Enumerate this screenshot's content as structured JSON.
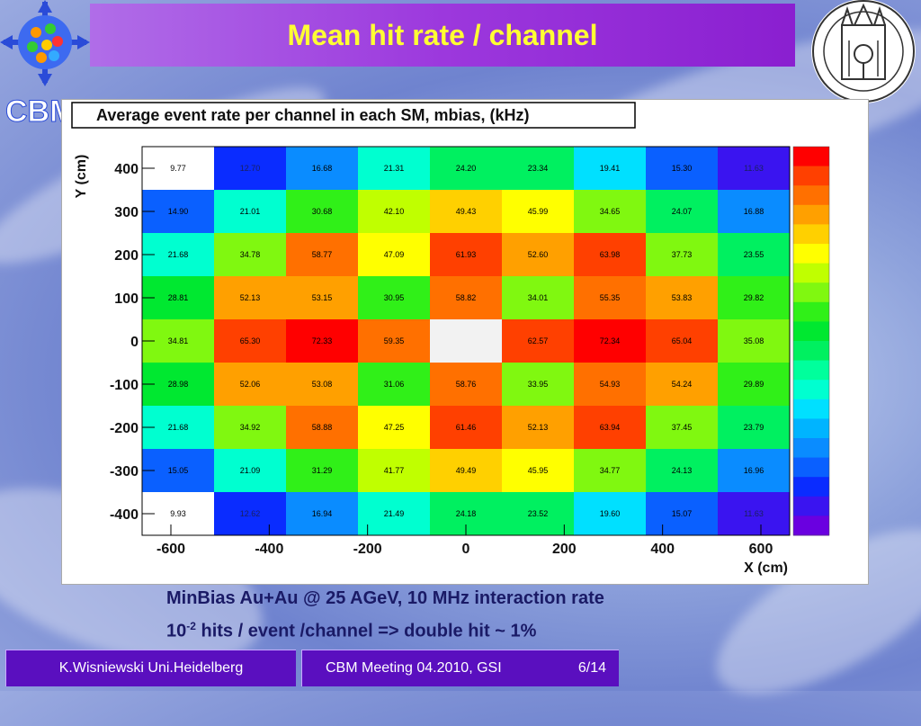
{
  "slide": {
    "title": "Mean hit rate / channel",
    "left_logo_text": "CBM",
    "caption_line1": "MinBias Au+Au @ 25 AGeV, 10 MHz interaction rate",
    "caption_line2_prefix": "10",
    "caption_line2_sup": "-2",
    "caption_line2_suffix": " hits / event /channel => double hit ~ 1%",
    "footer_author": "K.Wisniewski Uni.Heidelberg",
    "footer_meeting": "CBM Meeting 04.2010, GSI",
    "footer_page": "6/14"
  },
  "chart_data": {
    "type": "heatmap",
    "title": "Average event rate per channel in each SM, mbias, (kHz)",
    "xlabel": "X (cm)",
    "ylabel": "Y (cm)",
    "x_ticks": [
      "-600",
      "-400",
      "-200",
      "0",
      "200",
      "400",
      "600"
    ],
    "y_ticks": [
      "400",
      "300",
      "200",
      "100",
      "0",
      "-100",
      "-200",
      "-300",
      "-400"
    ],
    "cells": [
      [
        "9.77",
        "12.70",
        "16.68",
        "21.31",
        "24.20",
        "23.34",
        "19.41",
        "15.30",
        "11.63"
      ],
      [
        "14.90",
        "21.01",
        "30.68",
        "42.10",
        "49.43",
        "45.99",
        "34.65",
        "24.07",
        "16.88"
      ],
      [
        "21.68",
        "34.78",
        "58.77",
        "47.09",
        "61.93",
        "52.60",
        "63.98",
        "37.73",
        "23.55"
      ],
      [
        "28.81",
        "52.13",
        "53.15",
        "30.95",
        "58.82",
        "34.01",
        "55.35",
        "53.83",
        "29.82"
      ],
      [
        "34.81",
        "65.30",
        "72.33",
        "59.35",
        "",
        "62.57",
        "72.34",
        "65.04",
        "35.08"
      ],
      [
        "28.98",
        "52.06",
        "53.08",
        "31.06",
        "58.76",
        "33.95",
        "54.93",
        "54.24",
        "29.89"
      ],
      [
        "21.68",
        "34.92",
        "58.88",
        "47.25",
        "61.46",
        "52.13",
        "63.94",
        "37.45",
        "23.79"
      ],
      [
        "15.05",
        "21.09",
        "31.29",
        "41.77",
        "49.49",
        "45.95",
        "34.77",
        "24.13",
        "16.96"
      ],
      [
        "9.93",
        "12.62",
        "16.94",
        "21.49",
        "24.18",
        "23.52",
        "19.60",
        "15.07",
        "11.63"
      ]
    ],
    "z_range": [
      10,
      75
    ],
    "palette": [
      "#ffffff",
      "#6a00e0",
      "#3a14f0",
      "#0a2cff",
      "#0a60ff",
      "#0a8cff",
      "#00b4ff",
      "#00e0ff",
      "#00ffd0",
      "#00ff9c",
      "#00f060",
      "#00e830",
      "#30f018",
      "#80f810",
      "#c0ff00",
      "#ffff00",
      "#ffd000",
      "#ffa000",
      "#ff7000",
      "#ff4000",
      "#ff0000"
    ],
    "cell_colors": [
      [
        "#ffffff",
        "#0a2cff",
        "#0a8cff",
        "#00ffd0",
        "#00f060",
        "#00f060",
        "#00e0ff",
        "#0a60ff",
        "#3a14f0"
      ],
      [
        "#0a60ff",
        "#00ffd0",
        "#30f018",
        "#c0ff00",
        "#ffd000",
        "#ffff00",
        "#80f810",
        "#00f060",
        "#0a8cff"
      ],
      [
        "#00ffd0",
        "#80f810",
        "#ff7000",
        "#ffff00",
        "#ff4000",
        "#ffa000",
        "#ff4000",
        "#80f810",
        "#00f060"
      ],
      [
        "#00e830",
        "#ffa000",
        "#ffa000",
        "#30f018",
        "#ff7000",
        "#80f810",
        "#ff7000",
        "#ffa000",
        "#30f018"
      ],
      [
        "#80f810",
        "#ff4000",
        "#ff0000",
        "#ff7000",
        "#f2f2f2",
        "#ff4000",
        "#ff0000",
        "#ff4000",
        "#80f810"
      ],
      [
        "#00e830",
        "#ffa000",
        "#ffa000",
        "#30f018",
        "#ff7000",
        "#80f810",
        "#ff7000",
        "#ffa000",
        "#30f018"
      ],
      [
        "#00ffd0",
        "#80f810",
        "#ff7000",
        "#ffff00",
        "#ff4000",
        "#ffa000",
        "#ff4000",
        "#80f810",
        "#00f060"
      ],
      [
        "#0a60ff",
        "#00ffd0",
        "#30f018",
        "#c0ff00",
        "#ffd000",
        "#ffff00",
        "#80f810",
        "#00f060",
        "#0a8cff"
      ],
      [
        "#ffffff",
        "#0a2cff",
        "#0a8cff",
        "#00ffd0",
        "#00f060",
        "#00f060",
        "#00e0ff",
        "#0a60ff",
        "#3a14f0"
      ]
    ],
    "dark_text_cells": [
      "12.70",
      "11.63",
      "12.62"
    ],
    "grid": false,
    "legend": "right color scale"
  }
}
